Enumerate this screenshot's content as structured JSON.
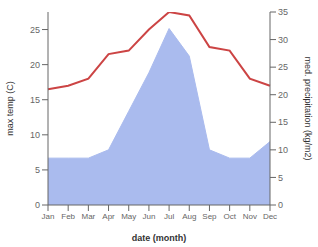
{
  "chart_data": {
    "type": "line",
    "xlabel": "date (month)",
    "ylabel": "max temp (C)",
    "y2label": "med. precipitation (kg/m2)",
    "categories": [
      "Jan",
      "Feb",
      "Mar",
      "Apr",
      "May",
      "Jun",
      "Jul",
      "Aug",
      "Sep",
      "Oct",
      "Nov",
      "Dec"
    ],
    "series": [
      {
        "type": "area",
        "axis": "y2",
        "color": "#aabbee",
        "values": [
          8.5,
          8.5,
          8.5,
          10.0,
          17.0,
          24.0,
          32.0,
          27.0,
          10.0,
          8.5,
          8.5,
          11.5
        ]
      },
      {
        "type": "line",
        "color": "#cc4444",
        "values": [
          16.5,
          17.0,
          18.0,
          21.5,
          22.0,
          25.0,
          27.5,
          27.0,
          22.5,
          22.0,
          18.0,
          17.0
        ]
      }
    ],
    "ylim": [
      0,
      27.5
    ],
    "yticks": [
      0,
      5,
      10,
      15,
      20,
      25
    ],
    "y2lim": [
      0,
      35
    ],
    "y2ticks": [
      0,
      5,
      10,
      15,
      20,
      25,
      30,
      35
    ],
    "grid": false
  }
}
